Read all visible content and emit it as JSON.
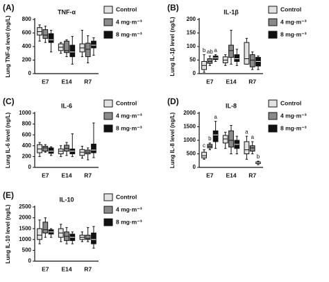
{
  "chart_data": [
    {
      "type": "box",
      "label": "(A)",
      "title": "TNF-α",
      "y_label": "Lung TNF-α level (ng/L)",
      "categories": [
        "E7",
        "E14",
        "R7"
      ],
      "ylim": [
        0,
        800
      ],
      "yticks": [
        0,
        200,
        400,
        600,
        800
      ],
      "series": [
        {
          "name": "Control",
          "color": "#e2e2e2",
          "min": [
            480,
            300,
            250
          ],
          "q1": [
            570,
            340,
            320
          ],
          "median": [
            620,
            390,
            380
          ],
          "q3": [
            680,
            440,
            440
          ],
          "max": [
            720,
            460,
            640
          ]
        },
        {
          "name": "4 mg·m⁻³",
          "color": "#8a8a8a",
          "min": [
            460,
            250,
            160
          ],
          "q1": [
            520,
            310,
            250
          ],
          "median": [
            570,
            340,
            360
          ],
          "q3": [
            650,
            480,
            450
          ],
          "max": [
            700,
            500,
            560
          ]
        },
        {
          "name": "8 mg·m⁻³",
          "color": "#111111",
          "min": [
            320,
            140,
            270
          ],
          "q1": [
            460,
            250,
            380
          ],
          "median": [
            500,
            320,
            420
          ],
          "q3": [
            590,
            420,
            480
          ],
          "max": [
            640,
            550,
            530
          ]
        }
      ]
    },
    {
      "type": "box",
      "label": "(B)",
      "title": "IL-1β",
      "y_label": "Lung IL-1β level (ng/L)",
      "categories": [
        "E7",
        "E14",
        "R7"
      ],
      "ylim": [
        0,
        200
      ],
      "yticks": [
        0,
        50,
        100,
        150,
        200
      ],
      "series": [
        {
          "name": "Control",
          "color": "#e2e2e2",
          "min": [
            5,
            30,
            35
          ],
          "q1": [
            15,
            40,
            35
          ],
          "median": [
            30,
            50,
            55
          ],
          "q3": [
            45,
            62,
            115
          ],
          "max": [
            70,
            70,
            130
          ],
          "labels": [
            "b",
            null,
            null
          ]
        },
        {
          "name": "4 mg·m⁻³",
          "color": "#8a8a8a",
          "min": [
            30,
            35,
            15
          ],
          "q1": [
            38,
            60,
            25
          ],
          "median": [
            45,
            85,
            50
          ],
          "q3": [
            55,
            105,
            70
          ],
          "max": [
            65,
            160,
            80
          ],
          "labels": [
            "ab",
            null,
            null
          ]
        },
        {
          "name": "8 mg·m⁻³",
          "color": "#111111",
          "min": [
            45,
            30,
            15
          ],
          "q1": [
            52,
            45,
            28
          ],
          "median": [
            58,
            55,
            45
          ],
          "q3": [
            65,
            70,
            60
          ],
          "max": [
            70,
            90,
            65
          ],
          "labels": [
            "a",
            null,
            null
          ]
        }
      ]
    },
    {
      "type": "box",
      "label": "(C)",
      "title": "IL-6",
      "y_label": "Lung IL-6 level (ng/L)",
      "categories": [
        "E7",
        "E14",
        "R7"
      ],
      "ylim": [
        0,
        1000
      ],
      "yticks": [
        0,
        200,
        400,
        600,
        800,
        1000
      ],
      "series": [
        {
          "name": "Control",
          "color": "#e2e2e2",
          "min": [
            200,
            200,
            170
          ],
          "q1": [
            270,
            250,
            220
          ],
          "median": [
            340,
            300,
            280
          ],
          "q3": [
            420,
            340,
            330
          ],
          "max": [
            460,
            400,
            390
          ]
        },
        {
          "name": "4 mg·m⁻³",
          "color": "#8a8a8a",
          "min": [
            280,
            220,
            140
          ],
          "q1": [
            300,
            300,
            250
          ],
          "median": [
            360,
            350,
            280
          ],
          "q3": [
            390,
            410,
            320
          ],
          "max": [
            420,
            460,
            360
          ]
        },
        {
          "name": "8 mg·m⁻³",
          "color": "#111111",
          "min": [
            220,
            200,
            180
          ],
          "q1": [
            260,
            250,
            270
          ],
          "median": [
            300,
            300,
            320
          ],
          "q3": [
            360,
            340,
            430
          ],
          "max": [
            380,
            620,
            820
          ]
        }
      ]
    },
    {
      "type": "box",
      "label": "(D)",
      "title": "IL-8",
      "y_label": "Lung IL-8 level (ng/L)",
      "categories": [
        "E7",
        "E14",
        "R7"
      ],
      "ylim": [
        0,
        2000
      ],
      "yticks": [
        0,
        500,
        1000,
        1500,
        2000
      ],
      "series": [
        {
          "name": "Control",
          "color": "#e2e2e2",
          "min": [
            300,
            700,
            300
          ],
          "q1": [
            350,
            900,
            500
          ],
          "median": [
            430,
            1050,
            650
          ],
          "q3": [
            560,
            1180,
            950
          ],
          "max": [
            650,
            1300,
            1150
          ],
          "labels": [
            "c",
            null,
            "a"
          ]
        },
        {
          "name": "4 mg·m⁻³",
          "color": "#8a8a8a",
          "min": [
            650,
            500,
            500
          ],
          "q1": [
            720,
            750,
            600
          ],
          "median": [
            780,
            1000,
            720
          ],
          "q3": [
            850,
            1350,
            800
          ],
          "max": [
            900,
            1550,
            950
          ],
          "labels": [
            "b",
            null,
            "a"
          ]
        },
        {
          "name": "8 mg·m⁻³",
          "color": "#111111",
          "min": [
            700,
            500,
            100
          ],
          "q1": [
            950,
            700,
            140
          ],
          "median": [
            1200,
            850,
            170
          ],
          "q3": [
            1350,
            1000,
            200
          ],
          "max": [
            1700,
            1150,
            230
          ],
          "labels": [
            "a",
            null,
            "b"
          ]
        }
      ]
    },
    {
      "type": "box",
      "label": "(E)",
      "title": "IL-10",
      "y_label": "Lung IL-10 level (ng/L)",
      "categories": [
        "E7",
        "E14",
        "R7"
      ],
      "ylim": [
        0,
        2500
      ],
      "yticks": [
        0,
        500,
        1000,
        1500,
        2000,
        2500
      ],
      "series": [
        {
          "name": "Control",
          "color": "#e2e2e2",
          "min": [
            800,
            900,
            900
          ],
          "q1": [
            1000,
            1100,
            1000
          ],
          "median": [
            1200,
            1300,
            1100
          ],
          "q3": [
            1500,
            1500,
            1200
          ],
          "max": [
            1900,
            1700,
            1350
          ]
        },
        {
          "name": "4 mg·m⁻³",
          "color": "#8a8a8a",
          "min": [
            1100,
            800,
            900
          ],
          "q1": [
            1300,
            950,
            1000
          ],
          "median": [
            1450,
            1150,
            1050
          ],
          "q3": [
            1800,
            1350,
            1200
          ],
          "max": [
            2000,
            1550,
            1550
          ]
        },
        {
          "name": "8 mg·m⁻³",
          "color": "#111111",
          "min": [
            1100,
            800,
            600
          ],
          "q1": [
            1250,
            950,
            800
          ],
          "median": [
            1350,
            1100,
            1000
          ],
          "q3": [
            1450,
            1250,
            1300
          ],
          "max": [
            1500,
            1350,
            1600
          ]
        }
      ]
    }
  ]
}
